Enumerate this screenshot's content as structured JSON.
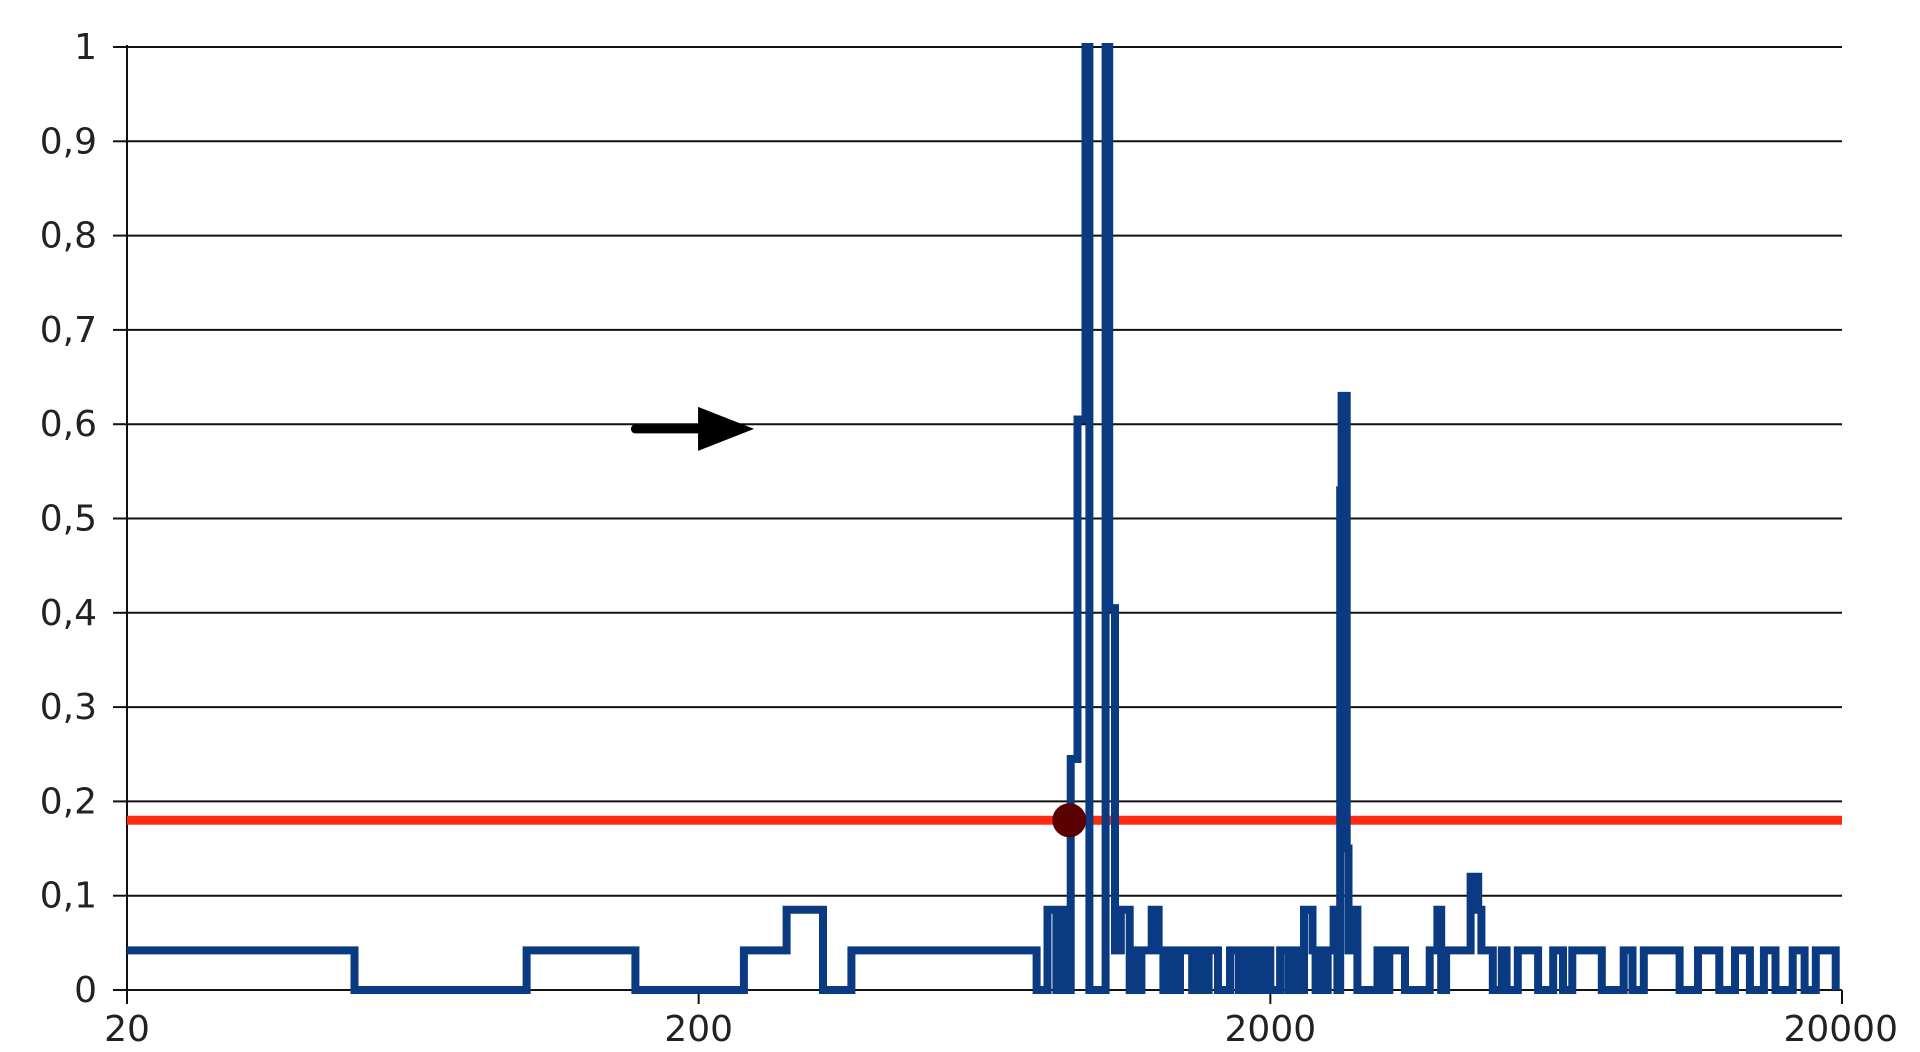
{
  "chart_data": {
    "type": "line",
    "x_scale": "log",
    "xlim": [
      20,
      20000
    ],
    "ylim": [
      0,
      1
    ],
    "x_ticks": [
      {
        "value": 20,
        "label": "20"
      },
      {
        "value": 200,
        "label": "200"
      },
      {
        "value": 2000,
        "label": "2000"
      },
      {
        "value": 20000,
        "label": "20000"
      }
    ],
    "y_ticks": [
      {
        "value": 0,
        "label": "0"
      },
      {
        "value": 0.1,
        "label": "0,1"
      },
      {
        "value": 0.2,
        "label": "0,2"
      },
      {
        "value": 0.3,
        "label": "0,3"
      },
      {
        "value": 0.4,
        "label": "0,4"
      },
      {
        "value": 0.5,
        "label": "0,5"
      },
      {
        "value": 0.6,
        "label": "0,6"
      },
      {
        "value": 0.7,
        "label": "0,7"
      },
      {
        "value": 0.8,
        "label": "0,8"
      },
      {
        "value": 0.9,
        "label": "0,9"
      },
      {
        "value": 1,
        "label": "1"
      }
    ],
    "grid": "horizontal",
    "colors": {
      "series": "#0a3a82",
      "threshold": "#ff2a10",
      "marker": "#5a0000",
      "grid": "#111111",
      "axis": "#111111"
    },
    "series": [
      {
        "points": [
          [
            20,
            0.042
          ],
          [
            50,
            0.042
          ],
          [
            50,
            0
          ],
          [
            100,
            0
          ],
          [
            100,
            0.042
          ],
          [
            155,
            0.042
          ],
          [
            155,
            0
          ],
          [
            240,
            0
          ],
          [
            240,
            0.042
          ],
          [
            285,
            0.042
          ],
          [
            285,
            0.085
          ],
          [
            330,
            0.085
          ],
          [
            330,
            0
          ],
          [
            370,
            0
          ],
          [
            370,
            0.042
          ],
          [
            780,
            0.042
          ],
          [
            780,
            0
          ],
          [
            815,
            0
          ],
          [
            815,
            0.085
          ],
          [
            845,
            0.085
          ],
          [
            845,
            0
          ],
          [
            855,
            0
          ],
          [
            855,
            0.085
          ],
          [
            875,
            0.085
          ],
          [
            875,
            0
          ],
          [
            895,
            0
          ],
          [
            895,
            0.245
          ],
          [
            920,
            0.245
          ],
          [
            920,
            0.605
          ],
          [
            950,
            0.605
          ],
          [
            950,
            1
          ],
          [
            965,
            1
          ],
          [
            965,
            0
          ],
          [
            1030,
            0
          ],
          [
            1030,
            1
          ],
          [
            1045,
            1
          ],
          [
            1045,
            0.405
          ],
          [
            1070,
            0.405
          ],
          [
            1070,
            0.042
          ],
          [
            1095,
            0.042
          ],
          [
            1095,
            0.085
          ],
          [
            1135,
            0.085
          ],
          [
            1135,
            0
          ],
          [
            1150,
            0
          ],
          [
            1150,
            0.042
          ],
          [
            1165,
            0.042
          ],
          [
            1165,
            0
          ],
          [
            1190,
            0
          ],
          [
            1190,
            0.042
          ],
          [
            1240,
            0.042
          ],
          [
            1240,
            0.085
          ],
          [
            1275,
            0.085
          ],
          [
            1275,
            0.042
          ],
          [
            1300,
            0.042
          ],
          [
            1300,
            0
          ],
          [
            1330,
            0
          ],
          [
            1330,
            0.042
          ],
          [
            1360,
            0.042
          ],
          [
            1360,
            0
          ],
          [
            1390,
            0
          ],
          [
            1390,
            0.042
          ],
          [
            1460,
            0.042
          ],
          [
            1460,
            0
          ],
          [
            1500,
            0
          ],
          [
            1500,
            0.042
          ],
          [
            1540,
            0.042
          ],
          [
            1540,
            0
          ],
          [
            1560,
            0
          ],
          [
            1560,
            0.042
          ],
          [
            1620,
            0.042
          ],
          [
            1620,
            0
          ],
          [
            1700,
            0
          ],
          [
            1700,
            0.042
          ],
          [
            1760,
            0.042
          ],
          [
            1760,
            0
          ],
          [
            1790,
            0
          ],
          [
            1790,
            0.042
          ],
          [
            1830,
            0.042
          ],
          [
            1830,
            0
          ],
          [
            1880,
            0
          ],
          [
            1880,
            0.042
          ],
          [
            1920,
            0.042
          ],
          [
            1920,
            0
          ],
          [
            1960,
            0
          ],
          [
            1960,
            0.042
          ],
          [
            2000,
            0.042
          ],
          [
            2000,
            0
          ],
          [
            2080,
            0
          ],
          [
            2080,
            0.042
          ],
          [
            2150,
            0.042
          ],
          [
            2150,
            0
          ],
          [
            2200,
            0
          ],
          [
            2200,
            0.042
          ],
          [
            2250,
            0.042
          ],
          [
            2250,
            0
          ],
          [
            2290,
            0
          ],
          [
            2290,
            0.085
          ],
          [
            2370,
            0.085
          ],
          [
            2370,
            0.042
          ],
          [
            2400,
            0.042
          ],
          [
            2400,
            0
          ],
          [
            2450,
            0
          ],
          [
            2450,
            0.042
          ],
          [
            2490,
            0.042
          ],
          [
            2490,
            0
          ],
          [
            2520,
            0
          ],
          [
            2520,
            0.042
          ],
          [
            2580,
            0.042
          ],
          [
            2580,
            0.085
          ],
          [
            2620,
            0.085
          ],
          [
            2620,
            0
          ],
          [
            2650,
            0
          ],
          [
            2650,
            0.53
          ],
          [
            2665,
            0.53
          ],
          [
            2665,
            0.63
          ],
          [
            2720,
            0.63
          ],
          [
            2720,
            0.15
          ],
          [
            2740,
            0.15
          ],
          [
            2740,
            0.042
          ],
          [
            2770,
            0.042
          ],
          [
            2770,
            0.085
          ],
          [
            2840,
            0.085
          ],
          [
            2840,
            0
          ],
          [
            3080,
            0
          ],
          [
            3080,
            0.042
          ],
          [
            3140,
            0.042
          ],
          [
            3140,
            0
          ],
          [
            3230,
            0
          ],
          [
            3230,
            0.042
          ],
          [
            3440,
            0.042
          ],
          [
            3440,
            0
          ],
          [
            3800,
            0
          ],
          [
            3800,
            0.042
          ],
          [
            3920,
            0.042
          ],
          [
            3920,
            0.085
          ],
          [
            3980,
            0.085
          ],
          [
            3980,
            0
          ],
          [
            4060,
            0
          ],
          [
            4060,
            0.042
          ],
          [
            4480,
            0.042
          ],
          [
            4480,
            0.12
          ],
          [
            4620,
            0.12
          ],
          [
            4620,
            0.085
          ],
          [
            4680,
            0.085
          ],
          [
            4680,
            0.042
          ],
          [
            4900,
            0.042
          ],
          [
            4900,
            0
          ],
          [
            5080,
            0
          ],
          [
            5080,
            0.042
          ],
          [
            5180,
            0.042
          ],
          [
            5180,
            0
          ],
          [
            5420,
            0
          ],
          [
            5420,
            0.042
          ],
          [
            5880,
            0.042
          ],
          [
            5880,
            0
          ],
          [
            6250,
            0
          ],
          [
            6250,
            0.042
          ],
          [
            6500,
            0.042
          ],
          [
            6500,
            0
          ],
          [
            6750,
            0
          ],
          [
            6750,
            0.042
          ],
          [
            7600,
            0.042
          ],
          [
            7600,
            0
          ],
          [
            8300,
            0
          ],
          [
            8300,
            0.042
          ],
          [
            8600,
            0.042
          ],
          [
            8600,
            0
          ],
          [
            9000,
            0
          ],
          [
            9000,
            0.042
          ],
          [
            10400,
            0.042
          ],
          [
            10400,
            0
          ],
          [
            11200,
            0
          ],
          [
            11200,
            0.042
          ],
          [
            12200,
            0.042
          ],
          [
            12200,
            0
          ],
          [
            13000,
            0
          ],
          [
            13000,
            0.042
          ],
          [
            13800,
            0.042
          ],
          [
            13800,
            0
          ],
          [
            14600,
            0
          ],
          [
            14600,
            0.042
          ],
          [
            15300,
            0.042
          ],
          [
            15300,
            0
          ],
          [
            16400,
            0
          ],
          [
            16400,
            0.042
          ],
          [
            17200,
            0.042
          ],
          [
            17200,
            0
          ],
          [
            18000,
            0
          ],
          [
            18000,
            0.042
          ],
          [
            19500,
            0.042
          ],
          [
            19500,
            0
          ]
        ]
      }
    ],
    "threshold_y": 0.18,
    "marker": {
      "x": 890,
      "y": 0.18
    },
    "arrow": {
      "x_from": 155,
      "x_to": 250,
      "y": 0.595,
      "direction": "right",
      "color": "#000000"
    }
  }
}
